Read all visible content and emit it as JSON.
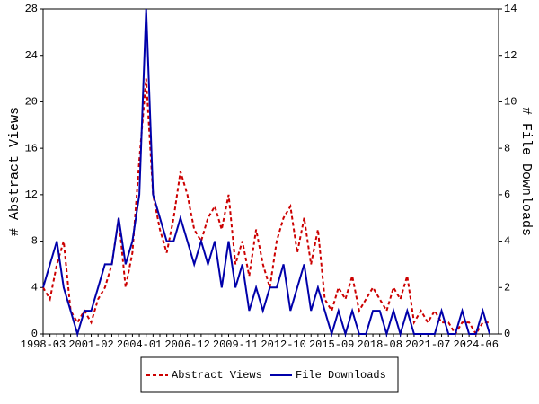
{
  "chart_data": {
    "type": "line",
    "x": [
      "1998-03",
      "1998-08",
      "1999-01",
      "1999-06",
      "1999-11",
      "2000-04",
      "2000-09",
      "2001-02",
      "2001-07",
      "2001-12",
      "2002-05",
      "2002-10",
      "2003-03",
      "2003-08",
      "2004-01",
      "2004-06",
      "2004-11",
      "2005-04",
      "2005-09",
      "2006-02",
      "2006-07",
      "2006-12",
      "2007-05",
      "2007-10",
      "2008-03",
      "2008-08",
      "2009-01",
      "2009-06",
      "2009-11",
      "2010-04",
      "2010-09",
      "2011-02",
      "2011-07",
      "2011-12",
      "2012-05",
      "2012-10",
      "2013-03",
      "2013-08",
      "2014-01",
      "2014-06",
      "2014-11",
      "2015-04",
      "2015-09",
      "2016-02",
      "2016-07",
      "2016-12",
      "2017-05",
      "2017-10",
      "2018-03",
      "2018-08",
      "2019-01",
      "2019-06",
      "2019-11",
      "2020-04",
      "2020-09",
      "2021-02",
      "2021-07",
      "2021-12",
      "2022-05",
      "2022-10",
      "2023-03",
      "2023-08",
      "2024-01",
      "2024-06",
      "2024-11",
      "2025-04"
    ],
    "ylabel": "# Abstract Views",
    "y2label": "# File Downloads",
    "ylim": [
      0,
      28
    ],
    "yticks": [
      0,
      4,
      8,
      12,
      16,
      20,
      24,
      28
    ],
    "y2lim": [
      0,
      14
    ],
    "y2ticks": [
      0,
      2,
      4,
      6,
      8,
      10,
      12,
      14
    ],
    "series": [
      {
        "name": "Abstract Views",
        "color": "#cc0000",
        "dashed": true,
        "values": [
          4,
          3,
          6,
          8,
          2,
          1,
          2,
          1,
          3,
          4,
          6,
          10,
          4,
          7,
          15,
          22,
          12,
          9,
          7,
          10,
          14,
          12,
          9,
          8,
          10,
          11,
          9,
          12,
          6,
          8,
          5,
          9,
          6,
          4,
          8,
          10,
          11,
          7,
          10,
          6,
          9,
          3,
          2,
          4,
          3,
          5,
          2,
          3,
          4,
          3,
          2,
          4,
          3,
          5,
          1,
          2,
          1,
          2,
          1,
          1,
          0,
          1,
          1,
          0,
          1,
          1
        ]
      },
      {
        "name": "File Downloads",
        "color": "#0000aa",
        "dashed": false,
        "axis": "y2",
        "values": [
          2,
          3,
          4,
          2,
          1,
          0,
          1,
          1,
          2,
          3,
          3,
          5,
          3,
          4,
          6,
          14,
          6,
          5,
          4,
          4,
          5,
          4,
          3,
          4,
          3,
          4,
          2,
          4,
          2,
          3,
          1,
          2,
          1,
          2,
          2,
          3,
          1,
          2,
          3,
          1,
          2,
          1,
          0,
          1,
          0,
          1,
          0,
          0,
          1,
          1,
          0,
          1,
          0,
          1,
          0,
          0,
          0,
          0,
          1,
          0,
          0,
          1,
          0,
          0,
          1,
          0
        ]
      }
    ]
  }
}
